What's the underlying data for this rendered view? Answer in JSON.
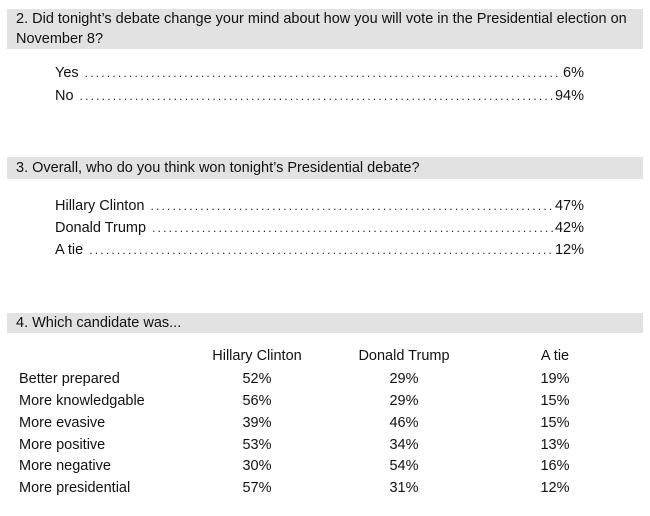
{
  "q2": {
    "question": "2. Did tonight’s debate change your mind about how you will vote in the Presidential election on November 8?",
    "answers": [
      {
        "label": "Yes",
        "value": "6%"
      },
      {
        "label": "No",
        "value": "94%"
      }
    ]
  },
  "q3": {
    "question": "3. Overall, who do you think won tonight’s Presidential debate?",
    "answers": [
      {
        "label": "Hillary Clinton",
        "value": "47%"
      },
      {
        "label": "Donald Trump",
        "value": "42%"
      },
      {
        "label": "A tie",
        "value": "12%"
      }
    ]
  },
  "q4": {
    "question": "4. Which candidate was...",
    "columns": [
      "Hillary Clinton",
      "Donald Trump",
      "A tie"
    ],
    "rows": [
      {
        "label": "Better prepared",
        "values": [
          "52%",
          "29%",
          "19%"
        ]
      },
      {
        "label": "More knowledgable",
        "values": [
          "56%",
          "29%",
          "15%"
        ]
      },
      {
        "label": "More evasive",
        "values": [
          "39%",
          "46%",
          "15%"
        ]
      },
      {
        "label": "More positive",
        "values": [
          "53%",
          "34%",
          "13%"
        ]
      },
      {
        "label": "More negative",
        "values": [
          "30%",
          "54%",
          "16%"
        ]
      },
      {
        "label": "More presidential",
        "values": [
          "57%",
          "31%",
          "12%"
        ]
      }
    ]
  }
}
